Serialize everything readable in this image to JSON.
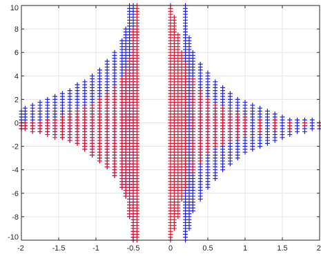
{
  "chart_data": {
    "type": "scatter",
    "title": "",
    "xlabel": "",
    "ylabel": "",
    "xlim": [
      -2,
      2
    ],
    "ylim": [
      -10,
      10
    ],
    "grid": true,
    "marker": "plus",
    "x_ticks": [
      -2,
      -1.5,
      -1,
      -0.5,
      0,
      0.5,
      1,
      1.5,
      2
    ],
    "x_tick_labels": [
      "-2",
      "-1.5",
      "-1",
      "-0.5",
      "0",
      "0.5",
      "1",
      "1.5",
      "2"
    ],
    "y_ticks": [
      -10,
      -8,
      -6,
      -4,
      -2,
      0,
      2,
      4,
      6,
      8,
      10
    ],
    "y_tick_labels": [
      "-10",
      "-8",
      "-6",
      "-4",
      "-2",
      "0",
      "2",
      "4",
      "6",
      "8",
      "10"
    ],
    "grid_x_step": 0.05,
    "grid_y_step": 0.25,
    "series": [
      {
        "color": "#1f1fd6",
        "region": "outer envelope of plotted points",
        "rows": [
          {
            "x": -2.0,
            "y": [
              -0.5,
              1.0
            ]
          },
          {
            "x": -1.95,
            "y": [
              -0.5,
              1.25
            ]
          },
          {
            "x": -1.85,
            "y": [
              -0.5,
              1.5
            ]
          },
          {
            "x": -1.75,
            "y": [
              -0.75,
              1.75
            ]
          },
          {
            "x": -1.65,
            "y": [
              -0.75,
              2.0
            ]
          },
          {
            "x": -1.55,
            "y": [
              -1.0,
              2.25
            ]
          },
          {
            "x": -1.45,
            "y": [
              -1.25,
              2.5
            ]
          },
          {
            "x": -1.35,
            "y": [
              -1.5,
              2.75
            ]
          },
          {
            "x": -1.25,
            "y": [
              -1.75,
              3.25
            ]
          },
          {
            "x": -1.15,
            "y": [
              -2.25,
              3.5
            ]
          },
          {
            "x": -1.05,
            "y": [
              -2.75,
              4.0
            ]
          },
          {
            "x": -0.95,
            "y": [
              -3.25,
              4.5
            ]
          },
          {
            "x": -0.85,
            "y": [
              -3.75,
              5.25
            ]
          },
          {
            "x": -0.75,
            "y": [
              -4.5,
              6.0
            ]
          },
          {
            "x": -0.65,
            "y": [
              -5.5,
              7.0
            ]
          },
          {
            "x": -0.6,
            "y": [
              -6.25,
              8.0
            ]
          },
          {
            "x": -0.55,
            "y": [
              -8.0,
              10.0
            ]
          },
          {
            "x": -0.5,
            "y": [
              -10.0,
              10.0
            ]
          },
          {
            "x": 0.2,
            "y": [
              -10.0,
              10.0
            ]
          },
          {
            "x": 0.25,
            "y": [
              -9.0,
              7.25
            ]
          },
          {
            "x": 0.3,
            "y": [
              -7.5,
              6.0
            ]
          },
          {
            "x": 0.4,
            "y": [
              -6.5,
              5.0
            ]
          },
          {
            "x": 0.5,
            "y": [
              -5.5,
              4.25
            ]
          },
          {
            "x": 0.6,
            "y": [
              -4.75,
              3.5
            ]
          },
          {
            "x": 0.7,
            "y": [
              -4.0,
              3.0
            ]
          },
          {
            "x": 0.8,
            "y": [
              -3.5,
              2.5
            ]
          },
          {
            "x": 0.9,
            "y": [
              -3.0,
              2.0
            ]
          },
          {
            "x": 1.0,
            "y": [
              -2.5,
              1.75
            ]
          },
          {
            "x": 1.1,
            "y": [
              -2.25,
              1.5
            ]
          },
          {
            "x": 1.2,
            "y": [
              -2.0,
              1.25
            ]
          },
          {
            "x": 1.3,
            "y": [
              -1.75,
              1.0
            ]
          },
          {
            "x": 1.4,
            "y": [
              -1.5,
              0.75
            ]
          },
          {
            "x": 1.5,
            "y": [
              -1.25,
              0.5
            ]
          },
          {
            "x": 1.6,
            "y": [
              -1.0,
              0.25
            ]
          },
          {
            "x": 1.7,
            "y": [
              -0.75,
              0.25
            ]
          },
          {
            "x": 1.8,
            "y": [
              -0.75,
              0.25
            ]
          },
          {
            "x": 1.9,
            "y": [
              -0.5,
              0.25
            ]
          },
          {
            "x": 2.0,
            "y": [
              -0.5,
              0.0
            ]
          }
        ]
      },
      {
        "color": "#d6142e",
        "region": "inner region drawn on top",
        "rows": [
          {
            "x": -2.0,
            "y": [
              -0.5,
              0.0
            ]
          },
          {
            "x": -1.95,
            "y": [
              -0.5,
              0.0
            ]
          },
          {
            "x": -1.85,
            "y": [
              -0.75,
              0.0
            ]
          },
          {
            "x": -1.75,
            "y": [
              -0.75,
              0.0
            ]
          },
          {
            "x": -1.65,
            "y": [
              -1.0,
              0.25
            ]
          },
          {
            "x": -1.55,
            "y": [
              -1.25,
              0.25
            ]
          },
          {
            "x": -1.45,
            "y": [
              -1.25,
              0.5
            ]
          },
          {
            "x": -1.35,
            "y": [
              -1.5,
              0.75
            ]
          },
          {
            "x": -1.25,
            "y": [
              -1.75,
              1.0
            ]
          },
          {
            "x": -1.15,
            "y": [
              -2.25,
              1.25
            ]
          },
          {
            "x": -1.05,
            "y": [
              -2.75,
              1.5
            ]
          },
          {
            "x": -0.95,
            "y": [
              -3.25,
              2.0
            ]
          },
          {
            "x": -0.85,
            "y": [
              -3.75,
              2.5
            ]
          },
          {
            "x": -0.75,
            "y": [
              -4.5,
              3.0
            ]
          },
          {
            "x": -0.65,
            "y": [
              -5.5,
              3.75
            ]
          },
          {
            "x": -0.6,
            "y": [
              -6.25,
              4.5
            ]
          },
          {
            "x": -0.55,
            "y": [
              -8.0,
              5.5
            ]
          },
          {
            "x": -0.5,
            "y": [
              -10.0,
              8.0
            ]
          },
          {
            "x": -0.45,
            "y": [
              -10.0,
              10.0
            ]
          },
          {
            "x": 0.0,
            "y": [
              -10.0,
              10.0
            ]
          },
          {
            "x": 0.05,
            "y": [
              -9.0,
              9.0
            ]
          },
          {
            "x": 0.1,
            "y": [
              -8.0,
              7.5
            ]
          },
          {
            "x": 0.15,
            "y": [
              -6.5,
              6.0
            ]
          },
          {
            "x": 0.2,
            "y": [
              -5.5,
              5.0
            ]
          },
          {
            "x": 0.3,
            "y": [
              -4.25,
              3.75
            ]
          },
          {
            "x": 0.4,
            "y": [
              -3.25,
              2.75
            ]
          },
          {
            "x": 0.5,
            "y": [
              -2.5,
              2.0
            ]
          },
          {
            "x": 0.6,
            "y": [
              -2.0,
              1.5
            ]
          },
          {
            "x": 0.7,
            "y": [
              -1.75,
              1.25
            ]
          },
          {
            "x": 0.8,
            "y": [
              -1.5,
              1.0
            ]
          },
          {
            "x": 0.9,
            "y": [
              -1.25,
              0.75
            ]
          },
          {
            "x": 1.0,
            "y": [
              -1.0,
              0.5
            ]
          },
          {
            "x": 1.2,
            "y": [
              -0.75,
              0.25
            ]
          },
          {
            "x": 1.4,
            "y": [
              -0.5,
              0.25
            ]
          },
          {
            "x": 1.6,
            "y": [
              -0.5,
              0.0
            ]
          },
          {
            "x": 1.8,
            "y": [
              -0.25,
              0.0
            ]
          },
          {
            "x": 2.0,
            "y": [
              -0.25,
              0.0
            ]
          }
        ]
      }
    ]
  }
}
